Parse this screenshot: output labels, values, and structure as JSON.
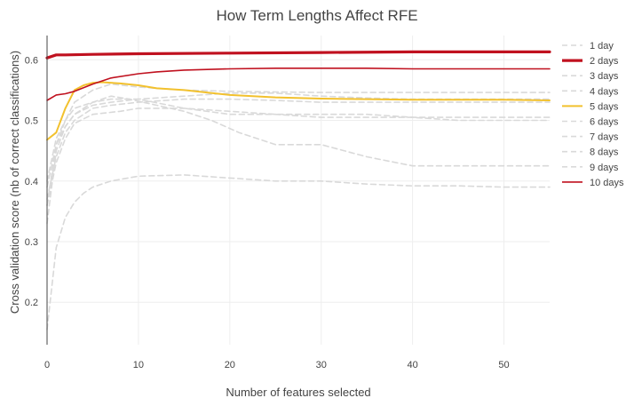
{
  "chart_data": {
    "type": "line",
    "title": "How Term Lengths Affect RFE",
    "xlabel": "Number of features selected",
    "ylabel": "Cross validation score (nb of correct classifications)",
    "xlim": [
      0,
      55
    ],
    "ylim": [
      0.13,
      0.64
    ],
    "xticks": [
      0,
      10,
      20,
      30,
      40,
      50
    ],
    "yticks": [
      0.2,
      0.3,
      0.4,
      0.5,
      0.6
    ],
    "grid": true,
    "legend_position": "right",
    "series": [
      {
        "name": "1 day",
        "color": "#d9d9d9",
        "dash": true,
        "width": 1.6,
        "x": [
          0,
          1,
          2,
          3,
          4,
          5,
          7,
          10,
          15,
          20,
          25,
          30,
          35,
          40,
          45,
          50,
          55
        ],
        "y": [
          0.33,
          0.45,
          0.49,
          0.51,
          0.52,
          0.53,
          0.535,
          0.535,
          0.52,
          0.51,
          0.51,
          0.505,
          0.505,
          0.505,
          0.5,
          0.5,
          0.5
        ]
      },
      {
        "name": "2 days",
        "color": "#c0111f",
        "dash": false,
        "width": 3.2,
        "x": [
          0,
          1,
          2,
          5,
          10,
          20,
          30,
          40,
          50,
          55
        ],
        "y": [
          0.603,
          0.608,
          0.608,
          0.609,
          0.61,
          0.611,
          0.612,
          0.613,
          0.613,
          0.613
        ]
      },
      {
        "name": "3 days",
        "color": "#d9d9d9",
        "dash": true,
        "width": 1.6,
        "x": [
          0,
          1,
          2,
          3,
          5,
          7,
          10,
          15,
          20,
          25,
          30,
          35,
          40,
          45,
          50,
          55
        ],
        "y": [
          0.36,
          0.46,
          0.5,
          0.53,
          0.55,
          0.56,
          0.555,
          0.55,
          0.548,
          0.547,
          0.546,
          0.546,
          0.546,
          0.546,
          0.546,
          0.546
        ]
      },
      {
        "name": "4 days",
        "color": "#d9d9d9",
        "dash": true,
        "width": 1.6,
        "x": [
          0,
          1,
          2,
          3,
          5,
          7,
          9,
          12,
          15,
          18,
          21,
          25,
          30,
          35,
          40,
          45,
          50,
          55
        ],
        "y": [
          0.4,
          0.47,
          0.5,
          0.52,
          0.53,
          0.54,
          0.535,
          0.525,
          0.515,
          0.5,
          0.48,
          0.46,
          0.46,
          0.44,
          0.425,
          0.425,
          0.425,
          0.425
        ]
      },
      {
        "name": "5 days",
        "color": "#f2c12e",
        "dash": false,
        "width": 2,
        "x": [
          0,
          1,
          2,
          3,
          4,
          5,
          6,
          8,
          10,
          12,
          15,
          20,
          25,
          30,
          35,
          40,
          45,
          50,
          55
        ],
        "y": [
          0.468,
          0.48,
          0.52,
          0.55,
          0.558,
          0.562,
          0.563,
          0.561,
          0.558,
          0.553,
          0.55,
          0.542,
          0.538,
          0.536,
          0.535,
          0.534,
          0.534,
          0.534,
          0.533
        ]
      },
      {
        "name": "6 days",
        "color": "#d9d9d9",
        "dash": true,
        "width": 1.6,
        "x": [
          0,
          1,
          2,
          3,
          5,
          8,
          10,
          15,
          20,
          25,
          30,
          35,
          40,
          45,
          50,
          55
        ],
        "y": [
          0.36,
          0.43,
          0.47,
          0.495,
          0.51,
          0.515,
          0.52,
          0.52,
          0.515,
          0.51,
          0.51,
          0.51,
          0.505,
          0.505,
          0.505,
          0.505
        ]
      },
      {
        "name": "7 days",
        "color": "#d9d9d9",
        "dash": true,
        "width": 1.6,
        "x": [
          0,
          1,
          2,
          3,
          4,
          5,
          7,
          10,
          15,
          20,
          25,
          30,
          35,
          40,
          45,
          50,
          55
        ],
        "y": [
          0.155,
          0.29,
          0.34,
          0.365,
          0.38,
          0.39,
          0.4,
          0.408,
          0.41,
          0.405,
          0.4,
          0.4,
          0.395,
          0.392,
          0.392,
          0.39,
          0.39
        ]
      },
      {
        "name": "8 days",
        "color": "#d9d9d9",
        "dash": true,
        "width": 1.6,
        "x": [
          0,
          1,
          2,
          3,
          5,
          7,
          10,
          15,
          20,
          25,
          30,
          35,
          40,
          45,
          50,
          55
        ],
        "y": [
          0.37,
          0.44,
          0.48,
          0.5,
          0.52,
          0.525,
          0.53,
          0.535,
          0.535,
          0.533,
          0.53,
          0.53,
          0.53,
          0.53,
          0.53,
          0.53
        ]
      },
      {
        "name": "9 days",
        "color": "#d9d9d9",
        "dash": true,
        "width": 1.6,
        "x": [
          0,
          1,
          2,
          3,
          5,
          7,
          10,
          15,
          20,
          25,
          30,
          35,
          40,
          45,
          50,
          55
        ],
        "y": [
          0.39,
          0.46,
          0.49,
          0.51,
          0.525,
          0.53,
          0.535,
          0.54,
          0.545,
          0.545,
          0.54,
          0.537,
          0.535,
          0.535,
          0.535,
          0.535
        ]
      },
      {
        "name": "10 days",
        "color": "#c0111f",
        "dash": false,
        "width": 1.6,
        "x": [
          0,
          1,
          2,
          3,
          5,
          7,
          10,
          12,
          15,
          20,
          25,
          30,
          35,
          40,
          45,
          50,
          55
        ],
        "y": [
          0.533,
          0.542,
          0.544,
          0.548,
          0.56,
          0.57,
          0.577,
          0.58,
          0.583,
          0.585,
          0.586,
          0.586,
          0.586,
          0.585,
          0.585,
          0.585,
          0.585
        ]
      }
    ]
  }
}
